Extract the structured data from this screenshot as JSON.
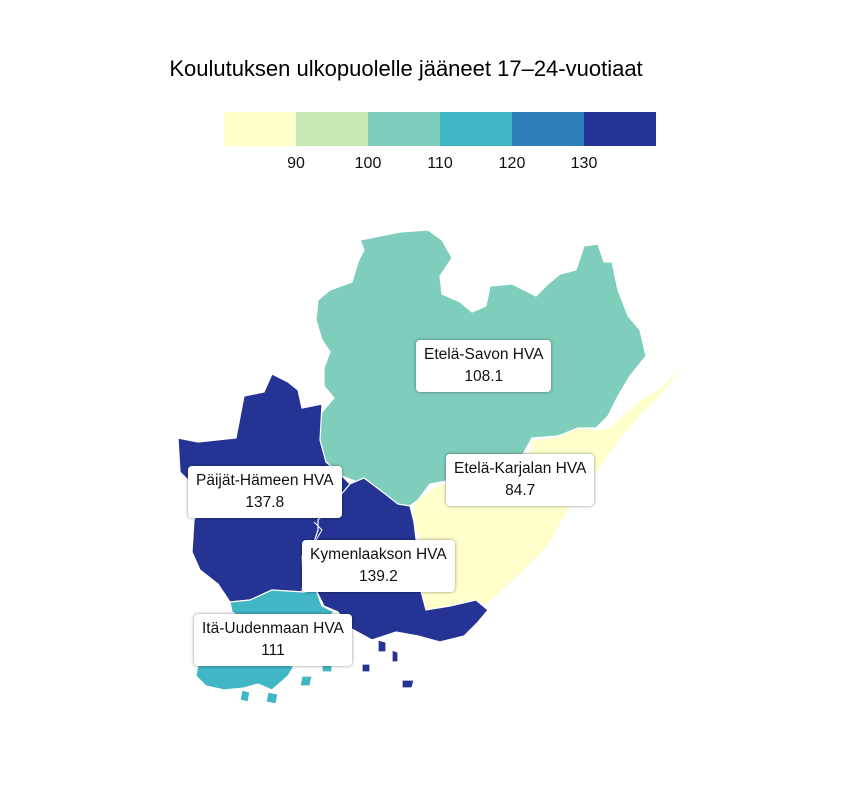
{
  "title": "Koulutuksen ulkopuolelle jääneet 17–24-vuotiaat",
  "legend": {
    "colors": [
      "#ffffcc",
      "#c7e9b4",
      "#7fcdbb",
      "#41b6c4",
      "#2c7fb8",
      "#253494"
    ],
    "ticks": [
      "90",
      "100",
      "110",
      "120",
      "130"
    ]
  },
  "regions": [
    {
      "name": "Etelä-Savon HVA",
      "value": "108.1",
      "color": "#7fcdbb"
    },
    {
      "name": "Etelä-Karjalan HVA",
      "value": "84.7",
      "color": "#ffffcc"
    },
    {
      "name": "Päijät-Hämeen HVA",
      "value": "137.8",
      "color": "#253494"
    },
    {
      "name": "Kymenlaakson HVA",
      "value": "139.2",
      "color": "#253494"
    },
    {
      "name": "Itä-Uudenmaan HVA",
      "value": "111",
      "color": "#41b6c4"
    }
  ]
}
